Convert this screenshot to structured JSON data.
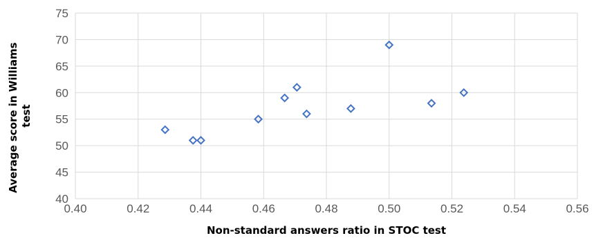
{
  "chart_data": {
    "type": "scatter",
    "title": "",
    "xlabel": "Non-standard answers ratio in STOC test",
    "ylabel": "Average score in Williams test",
    "ylabel_lines": [
      "Average score in Williams",
      "test"
    ],
    "xlim": [
      0.4,
      0.56
    ],
    "ylim": [
      40,
      75
    ],
    "x_ticks": [
      "0.40",
      "0.42",
      "0.44",
      "0.46",
      "0.48",
      "0.50",
      "0.52",
      "0.54",
      "0.56"
    ],
    "y_ticks": [
      "40",
      "45",
      "50",
      "55",
      "60",
      "65",
      "70",
      "75"
    ],
    "grid": true,
    "legend": "none",
    "marker_color": "#4472c4",
    "points": [
      {
        "x": 0.4286,
        "y": 53
      },
      {
        "x": 0.4375,
        "y": 51
      },
      {
        "x": 0.44,
        "y": 51
      },
      {
        "x": 0.4583,
        "y": 55
      },
      {
        "x": 0.4667,
        "y": 59
      },
      {
        "x": 0.4706,
        "y": 61
      },
      {
        "x": 0.4737,
        "y": 56
      },
      {
        "x": 0.4878,
        "y": 57
      },
      {
        "x": 0.5,
        "y": 69
      },
      {
        "x": 0.5135,
        "y": 58
      },
      {
        "x": 0.5238,
        "y": 60
      }
    ]
  }
}
